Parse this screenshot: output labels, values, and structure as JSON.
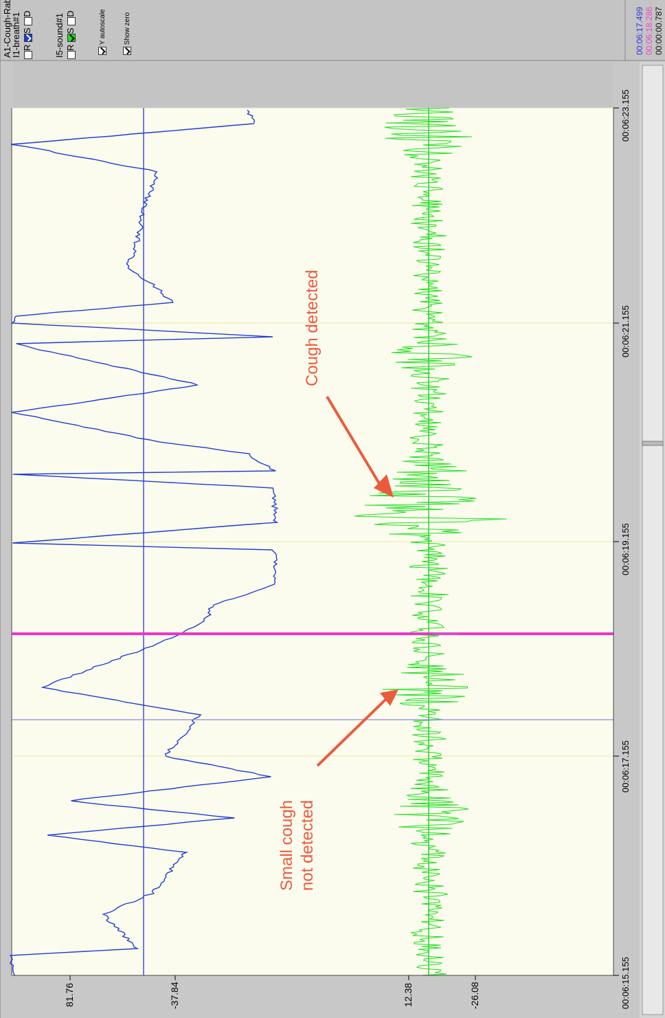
{
  "controls": {
    "title": "A1-Cough-Rab",
    "channel1": {
      "name": "I1-breath#1",
      "R_label": "R",
      "S_label": "S",
      "D_label": "D",
      "R_checked": false,
      "S_checked": true,
      "D_checked": false,
      "color": "#1e3bd6"
    },
    "channel2": {
      "name": "I5-sound#1",
      "R_label": "R",
      "S_label": "S",
      "D_label": "D",
      "R_checked": false,
      "S_checked": true,
      "D_checked": false,
      "color": "#1ee01e"
    },
    "y_autoscale_label": "Y autoscale",
    "y_autoscale_checked": true,
    "show_zero_label": "Show zero",
    "show_zero_checked": true
  },
  "times": {
    "cursor_time": "00:06:17.499",
    "marker_time": "00:06:18.286",
    "delta_time": "00:00:00.787",
    "cursor_color": "#3333dd",
    "marker_color": "#ee44cc"
  },
  "x_ticks": [
    "00:06:15.155",
    "00:06:17.155",
    "00:06:19.155",
    "00:06:21.155",
    "00:06:23.155"
  ],
  "y_ticks": {
    "breath": [
      "81.76",
      "-37.84"
    ],
    "sound": [
      "12.38",
      "-26.08"
    ]
  },
  "annotations": {
    "cough_detected": "Cough detected",
    "small_cough_line1": "Small cough",
    "small_cough_line2": "not detected",
    "color": "#ec5a3c"
  },
  "colors": {
    "plot_bg": "#fcfcee",
    "breath": "#1e3bd6",
    "sound": "#18e018",
    "marker": "#ee33cc"
  }
}
